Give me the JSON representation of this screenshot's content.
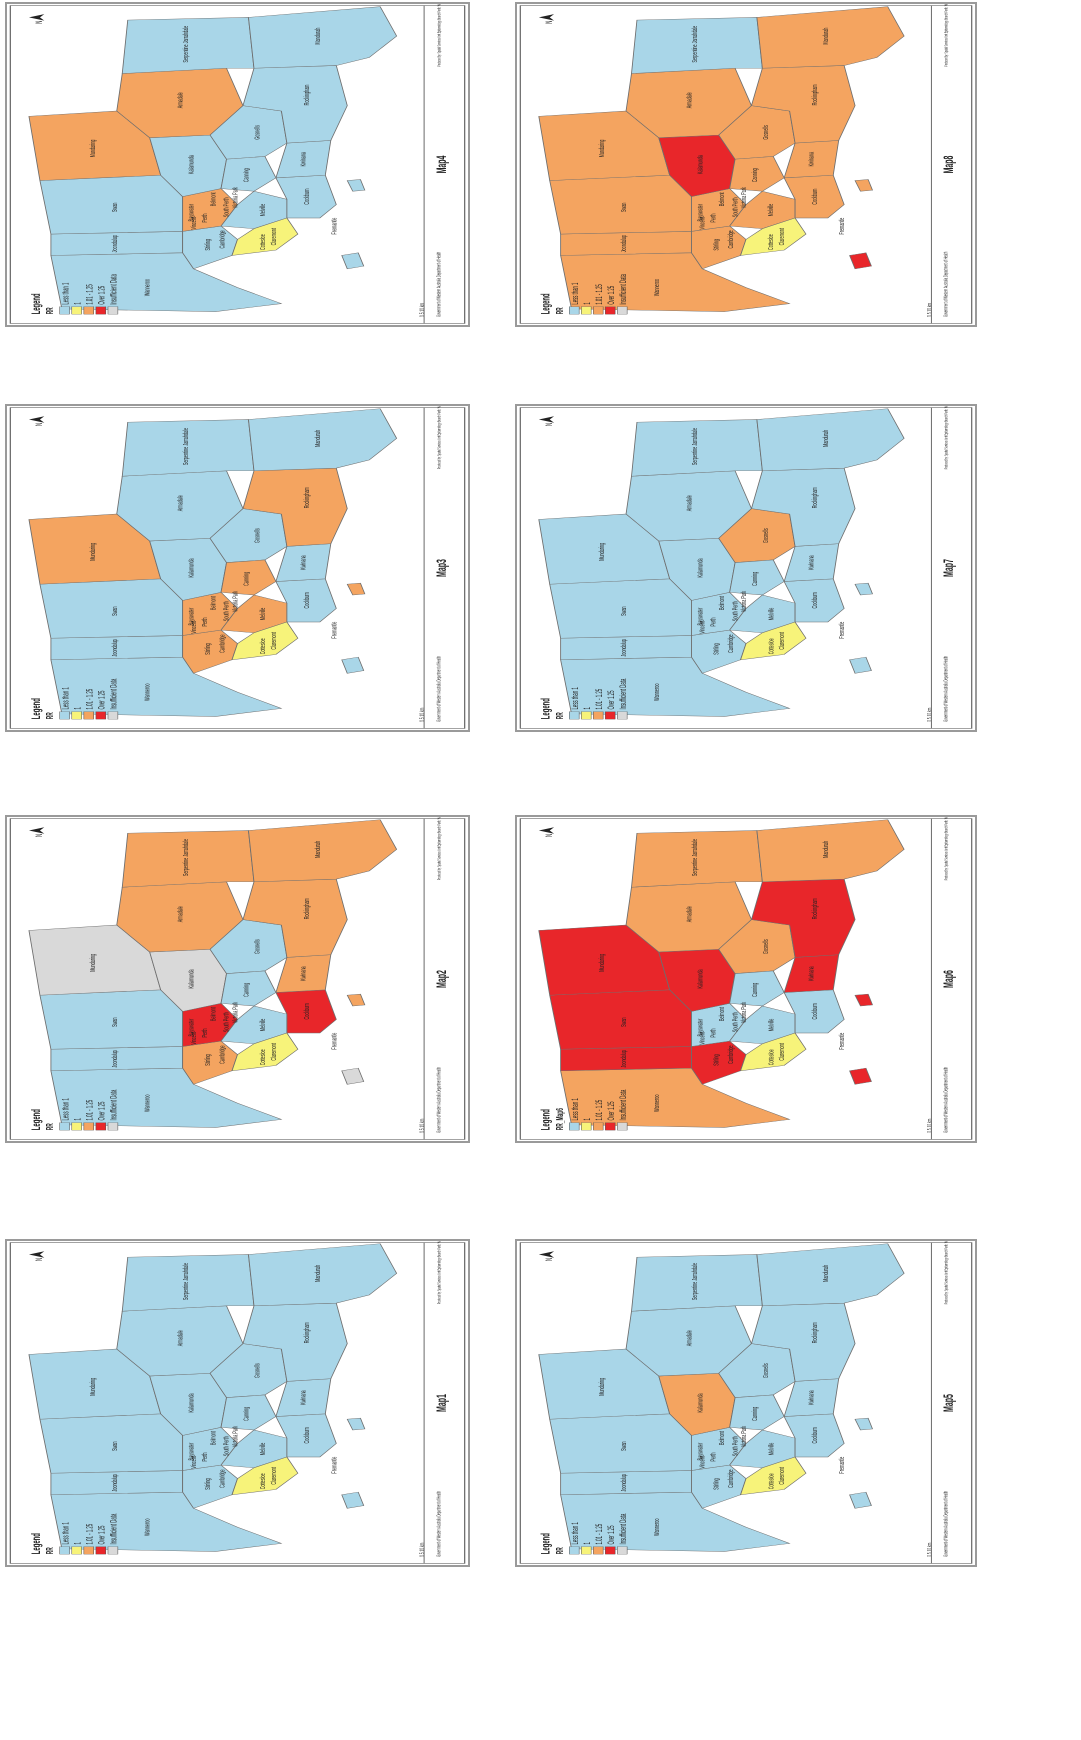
{
  "colors": {
    "less_than_1": "#a9d6e8",
    "eq_1": "#f7f37a",
    "r101_125": "#f4a460",
    "over_125": "#e8262a",
    "insufficient": "#d9d9d9",
    "border": "#6e6e6e"
  },
  "legend": {
    "title": "Legend",
    "field_default": "RR",
    "field_map6": "RR_Map6",
    "items": [
      {
        "key": "less_than_1",
        "label": "Less than 1"
      },
      {
        "key": "eq_1",
        "label": "1"
      },
      {
        "key": "r101_125",
        "label": "1.01 - 1.25"
      },
      {
        "key": "over_125",
        "label": "Over 1.25"
      },
      {
        "key": "insufficient",
        "label": "Insufficient Data"
      }
    ]
  },
  "north_symbol": "N",
  "scale_text": "0 5 10 km",
  "credit_text": "Government of Western Australia Department of Health",
  "producer_text": "Produced by: Spatial Services Unit Epidemiology Branch Perth, WA Date created: 2007",
  "region_labels": [
    "Wanneroo",
    "Swan",
    "Mundaring",
    "Kalamunda",
    "Armadale",
    "Serpentine Jarrahdale",
    "Mandurah",
    "Gosnells",
    "Canning",
    "Cockburn",
    "Kwinana",
    "Rockingham",
    "Melville",
    "Stirling",
    "Joondalup",
    "Bayswater",
    "Belmont",
    "Perth",
    "Vincent",
    "South Perth",
    "Victoria Park",
    "Cambridge",
    "Cottesloe",
    "Claremont",
    "Fremantle"
  ],
  "maps": [
    {
      "id": "map1",
      "title": "Map1",
      "field": "field_default",
      "colors": {
        "Wanneroo": "less_than_1",
        "Swan": "less_than_1",
        "Mundaring": "less_than_1",
        "Kalamunda": "less_than_1",
        "Armadale": "less_than_1",
        "Serpentine Jarrahdale": "less_than_1",
        "Mandurah": "less_than_1",
        "Gosnells": "less_than_1",
        "Canning": "less_than_1",
        "Cockburn": "less_than_1",
        "Kwinana": "less_than_1",
        "Rockingham": "less_than_1",
        "Melville": "less_than_1",
        "Stirling": "less_than_1",
        "Joondalup": "less_than_1",
        "Central": "less_than_1",
        "Coast": "eq_1",
        "Rottnest": "less_than_1",
        "Garden": "less_than_1"
      }
    },
    {
      "id": "map2",
      "title": "Map2",
      "field": "field_default",
      "colors": {
        "Wanneroo": "less_than_1",
        "Swan": "less_than_1",
        "Mundaring": "insufficient",
        "Kalamunda": "insufficient",
        "Armadale": "r101_125",
        "Serpentine Jarrahdale": "r101_125",
        "Mandurah": "r101_125",
        "Gosnells": "less_than_1",
        "Canning": "less_than_1",
        "Cockburn": "over_125",
        "Kwinana": "r101_125",
        "Rockingham": "r101_125",
        "Melville": "less_than_1",
        "Stirling": "r101_125",
        "Joondalup": "less_than_1",
        "Central": "over_125",
        "Coast": "eq_1",
        "Rottnest": "insufficient",
        "Garden": "r101_125"
      }
    },
    {
      "id": "map3",
      "title": "Map3",
      "field": "field_default",
      "colors": {
        "Wanneroo": "less_than_1",
        "Swan": "less_than_1",
        "Mundaring": "r101_125",
        "Kalamunda": "less_than_1",
        "Armadale": "less_than_1",
        "Serpentine Jarrahdale": "less_than_1",
        "Mandurah": "less_than_1",
        "Gosnells": "less_than_1",
        "Canning": "r101_125",
        "Cockburn": "less_than_1",
        "Kwinana": "less_than_1",
        "Rockingham": "r101_125",
        "Melville": "r101_125",
        "Stirling": "r101_125",
        "Joondalup": "less_than_1",
        "Central": "r101_125",
        "Coast": "eq_1",
        "Rottnest": "less_than_1",
        "Garden": "r101_125"
      }
    },
    {
      "id": "map4",
      "title": "Map4",
      "field": "field_default",
      "colors": {
        "Wanneroo": "less_than_1",
        "Swan": "less_than_1",
        "Mundaring": "r101_125",
        "Kalamunda": "less_than_1",
        "Armadale": "r101_125",
        "Serpentine Jarrahdale": "less_than_1",
        "Mandurah": "less_than_1",
        "Gosnells": "less_than_1",
        "Canning": "less_than_1",
        "Cockburn": "less_than_1",
        "Kwinana": "less_than_1",
        "Rockingham": "less_than_1",
        "Melville": "less_than_1",
        "Stirling": "less_than_1",
        "Joondalup": "less_than_1",
        "Central": "r101_125",
        "Coast": "eq_1",
        "Rottnest": "less_than_1",
        "Garden": "less_than_1"
      }
    },
    {
      "id": "map5",
      "title": "Map5",
      "field": "field_default",
      "colors": {
        "Wanneroo": "less_than_1",
        "Swan": "less_than_1",
        "Mundaring": "less_than_1",
        "Kalamunda": "r101_125",
        "Armadale": "less_than_1",
        "Serpentine Jarrahdale": "less_than_1",
        "Mandurah": "less_than_1",
        "Gosnells": "less_than_1",
        "Canning": "less_than_1",
        "Cockburn": "less_than_1",
        "Kwinana": "less_than_1",
        "Rockingham": "less_than_1",
        "Melville": "less_than_1",
        "Stirling": "less_than_1",
        "Joondalup": "less_than_1",
        "Central": "less_than_1",
        "Coast": "eq_1",
        "Rottnest": "less_than_1",
        "Garden": "less_than_1"
      }
    },
    {
      "id": "map6",
      "title": "Map6",
      "field": "field_map6",
      "colors": {
        "Wanneroo": "r101_125",
        "Swan": "over_125",
        "Mundaring": "over_125",
        "Kalamunda": "over_125",
        "Armadale": "r101_125",
        "Serpentine Jarrahdale": "r101_125",
        "Mandurah": "r101_125",
        "Gosnells": "r101_125",
        "Canning": "less_than_1",
        "Cockburn": "less_than_1",
        "Kwinana": "over_125",
        "Rockingham": "over_125",
        "Melville": "less_than_1",
        "Stirling": "over_125",
        "Joondalup": "over_125",
        "Central": "less_than_1",
        "Coast": "eq_1",
        "Rottnest": "over_125",
        "Garden": "over_125"
      }
    },
    {
      "id": "map7",
      "title": "Map7",
      "field": "field_default",
      "colors": {
        "Wanneroo": "less_than_1",
        "Swan": "less_than_1",
        "Mundaring": "less_than_1",
        "Kalamunda": "less_than_1",
        "Armadale": "less_than_1",
        "Serpentine Jarrahdale": "less_than_1",
        "Mandurah": "less_than_1",
        "Gosnells": "r101_125",
        "Canning": "less_than_1",
        "Cockburn": "less_than_1",
        "Kwinana": "less_than_1",
        "Rockingham": "less_than_1",
        "Melville": "less_than_1",
        "Stirling": "less_than_1",
        "Joondalup": "less_than_1",
        "Central": "less_than_1",
        "Coast": "eq_1",
        "Rottnest": "less_than_1",
        "Garden": "less_than_1"
      }
    },
    {
      "id": "map8",
      "title": "Map8",
      "field": "field_default",
      "colors": {
        "Wanneroo": "r101_125",
        "Swan": "r101_125",
        "Mundaring": "r101_125",
        "Kalamunda": "over_125",
        "Armadale": "r101_125",
        "Serpentine Jarrahdale": "less_than_1",
        "Mandurah": "r101_125",
        "Gosnells": "r101_125",
        "Canning": "r101_125",
        "Cockburn": "r101_125",
        "Kwinana": "r101_125",
        "Rockingham": "r101_125",
        "Melville": "r101_125",
        "Stirling": "r101_125",
        "Joondalup": "r101_125",
        "Central": "r101_125",
        "Coast": "eq_1",
        "Rottnest": "over_125",
        "Garden": "r101_125"
      }
    }
  ]
}
